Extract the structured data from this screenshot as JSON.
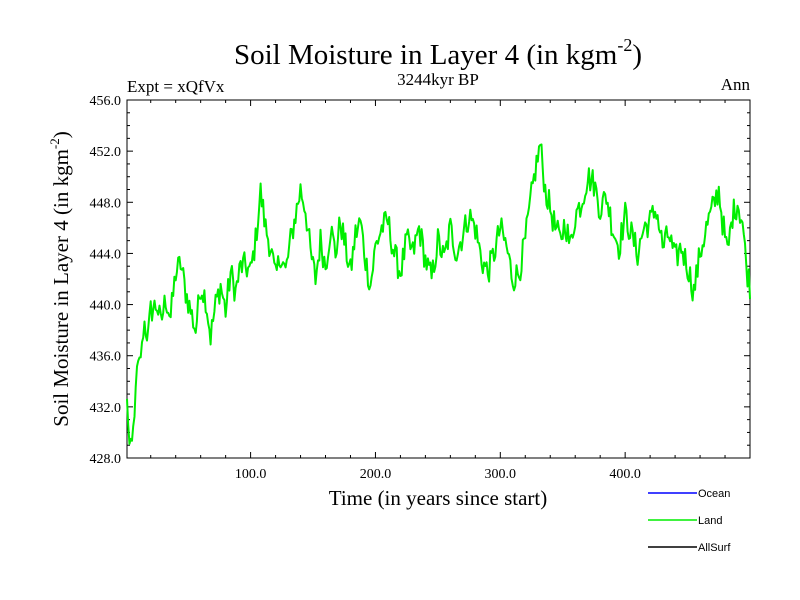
{
  "chart_data": {
    "type": "line",
    "title_main": "Soil Moisture in Layer 4 (in kgm",
    "title_sup": "-2",
    "title_close": ")",
    "subtitle_left": "Expt = xQfVx",
    "subtitle_center": "3244kyr BP",
    "subtitle_right": "Ann",
    "xlabel": "Time (in years since start)",
    "ylabel_main": "Soil Moisture in Layer 4 (in kgm",
    "ylabel_sup": "-2",
    "ylabel_close": ")",
    "xlim": [
      1,
      500
    ],
    "ylim": [
      428.0,
      456.0
    ],
    "xticks": [
      100,
      200,
      300,
      400
    ],
    "xtick_labels": [
      "100.0",
      "200.0",
      "300.0",
      "400.0"
    ],
    "yticks": [
      428,
      432,
      436,
      440,
      444,
      448,
      452,
      456
    ],
    "ytick_labels": [
      "428.0",
      "432.0",
      "436.0",
      "440.0",
      "444.0",
      "448.0",
      "452.0",
      "456.0"
    ],
    "series": [
      {
        "name": "Ocean",
        "color": "#0000ff",
        "values": []
      },
      {
        "name": "Land",
        "color": "#00ee00",
        "values": []
      },
      {
        "name": "AllSurf",
        "color": "#000000",
        "values": []
      }
    ],
    "land_anchor_points": [
      [
        1,
        432.5
      ],
      [
        3,
        429.0
      ],
      [
        5,
        429.2
      ],
      [
        7,
        431.5
      ],
      [
        9,
        435.0
      ],
      [
        12,
        436.0
      ],
      [
        15,
        438.5
      ],
      [
        18,
        437.5
      ],
      [
        20,
        439.5
      ],
      [
        25,
        440.0
      ],
      [
        28,
        438.5
      ],
      [
        32,
        440.5
      ],
      [
        36,
        439.0
      ],
      [
        40,
        442.5
      ],
      [
        44,
        443.2
      ],
      [
        48,
        441.0
      ],
      [
        52,
        439.5
      ],
      [
        56,
        438.0
      ],
      [
        60,
        441.5
      ],
      [
        64,
        440.5
      ],
      [
        68,
        437.5
      ],
      [
        72,
        440.0
      ],
      [
        76,
        441.5
      ],
      [
        80,
        439.5
      ],
      [
        84,
        442.5
      ],
      [
        88,
        441.0
      ],
      [
        92,
        443.0
      ],
      [
        96,
        443.0
      ],
      [
        100,
        442.5
      ],
      [
        104,
        445.0
      ],
      [
        108,
        448.8
      ],
      [
        112,
        446.0
      ],
      [
        116,
        444.5
      ],
      [
        120,
        442.0
      ],
      [
        124,
        444.0
      ],
      [
        128,
        442.5
      ],
      [
        132,
        445.0
      ],
      [
        136,
        447.0
      ],
      [
        140,
        449.0
      ],
      [
        144,
        447.5
      ],
      [
        148,
        444.0
      ],
      [
        152,
        442.0
      ],
      [
        156,
        445.0
      ],
      [
        160,
        443.0
      ],
      [
        164,
        446.0
      ],
      [
        168,
        444.0
      ],
      [
        172,
        446.5
      ],
      [
        176,
        444.5
      ],
      [
        180,
        442.5
      ],
      [
        184,
        445.5
      ],
      [
        188,
        446.5
      ],
      [
        192,
        443.5
      ],
      [
        196,
        441.5
      ],
      [
        200,
        444.5
      ],
      [
        205,
        446.0
      ],
      [
        210,
        446.5
      ],
      [
        215,
        444.0
      ],
      [
        220,
        442.5
      ],
      [
        225,
        445.0
      ],
      [
        230,
        444.0
      ],
      [
        235,
        446.0
      ],
      [
        240,
        443.5
      ],
      [
        245,
        442.0
      ],
      [
        250,
        445.0
      ],
      [
        255,
        443.5
      ],
      [
        260,
        446.0
      ],
      [
        265,
        444.0
      ],
      [
        270,
        445.5
      ],
      [
        275,
        447.0
      ],
      [
        280,
        446.0
      ],
      [
        285,
        443.5
      ],
      [
        290,
        442.5
      ],
      [
        295,
        444.0
      ],
      [
        300,
        446.0
      ],
      [
        305,
        444.5
      ],
      [
        310,
        442.0
      ],
      [
        315,
        442.5
      ],
      [
        320,
        445.0
      ],
      [
        325,
        448.5
      ],
      [
        328,
        450.5
      ],
      [
        332,
        452.5
      ],
      [
        336,
        449.0
      ],
      [
        340,
        447.5
      ],
      [
        344,
        446.0
      ],
      [
        348,
        445.0
      ],
      [
        352,
        446.5
      ],
      [
        356,
        444.5
      ],
      [
        360,
        447.0
      ],
      [
        365,
        448.0
      ],
      [
        370,
        450.0
      ],
      [
        375,
        449.5
      ],
      [
        380,
        447.5
      ],
      [
        385,
        448.5
      ],
      [
        390,
        446.0
      ],
      [
        395,
        444.5
      ],
      [
        400,
        447.0
      ],
      [
        405,
        445.5
      ],
      [
        410,
        444.0
      ],
      [
        415,
        446.0
      ],
      [
        420,
        446.5
      ],
      [
        425,
        447.5
      ],
      [
        430,
        444.5
      ],
      [
        435,
        445.5
      ],
      [
        440,
        443.5
      ],
      [
        445,
        444.5
      ],
      [
        450,
        443.0
      ],
      [
        455,
        441.0
      ],
      [
        460,
        444.0
      ],
      [
        465,
        446.0
      ],
      [
        470,
        447.5
      ],
      [
        475,
        449.0
      ],
      [
        478,
        446.5
      ],
      [
        482,
        444.0
      ],
      [
        486,
        447.0
      ],
      [
        490,
        448.0
      ],
      [
        494,
        446.5
      ],
      [
        497,
        443.0
      ],
      [
        500,
        441.5
      ]
    ],
    "legend": {
      "placement": "bottom-right"
    }
  }
}
